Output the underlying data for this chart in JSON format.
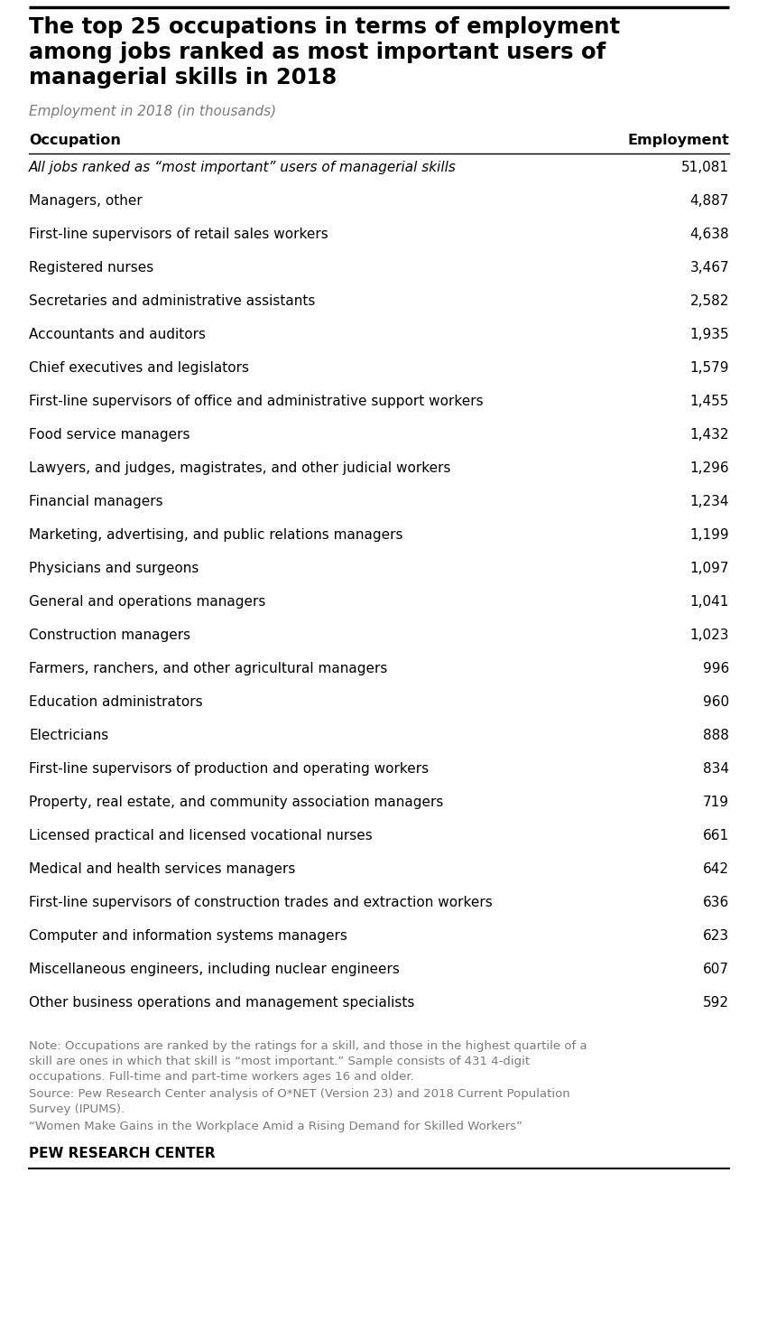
{
  "title_line1": "The top 25 occupations in terms of employment",
  "title_line2": "among jobs ranked as most important users of",
  "title_line3": "managerial skills in 2018",
  "subtitle": "Employment in 2018 (in thousands)",
  "col_header_occupation": "Occupation",
  "col_header_employment": "Employment",
  "rows": [
    {
      "occupation": "All jobs ranked as “most important” users of managerial skills",
      "employment": "51,081",
      "italic": true
    },
    {
      "occupation": "Managers, other",
      "employment": "4,887",
      "italic": false
    },
    {
      "occupation": "First-line supervisors of retail sales workers",
      "employment": "4,638",
      "italic": false
    },
    {
      "occupation": "Registered nurses",
      "employment": "3,467",
      "italic": false
    },
    {
      "occupation": "Secretaries and administrative assistants",
      "employment": "2,582",
      "italic": false
    },
    {
      "occupation": "Accountants and auditors",
      "employment": "1,935",
      "italic": false
    },
    {
      "occupation": "Chief executives and legislators",
      "employment": "1,579",
      "italic": false
    },
    {
      "occupation": "First-line supervisors of office and administrative support workers",
      "employment": "1,455",
      "italic": false
    },
    {
      "occupation": "Food service managers",
      "employment": "1,432",
      "italic": false
    },
    {
      "occupation": "Lawyers, and judges, magistrates, and other judicial workers",
      "employment": "1,296",
      "italic": false
    },
    {
      "occupation": "Financial managers",
      "employment": "1,234",
      "italic": false
    },
    {
      "occupation": "Marketing, advertising, and public relations managers",
      "employment": "1,199",
      "italic": false
    },
    {
      "occupation": "Physicians and surgeons",
      "employment": "1,097",
      "italic": false
    },
    {
      "occupation": "General and operations managers",
      "employment": "1,041",
      "italic": false
    },
    {
      "occupation": "Construction managers",
      "employment": "1,023",
      "italic": false
    },
    {
      "occupation": "Farmers, ranchers, and other agricultural managers",
      "employment": "996",
      "italic": false
    },
    {
      "occupation": "Education administrators",
      "employment": "960",
      "italic": false
    },
    {
      "occupation": "Electricians",
      "employment": "888",
      "italic": false
    },
    {
      "occupation": "First-line supervisors of production and operating workers",
      "employment": "834",
      "italic": false
    },
    {
      "occupation": "Property, real estate, and community association managers",
      "employment": "719",
      "italic": false
    },
    {
      "occupation": "Licensed practical and licensed vocational nurses",
      "employment": "661",
      "italic": false
    },
    {
      "occupation": "Medical and health services managers",
      "employment": "642",
      "italic": false
    },
    {
      "occupation": "First-line supervisors of construction trades and extraction workers",
      "employment": "636",
      "italic": false
    },
    {
      "occupation": "Computer and information systems managers",
      "employment": "623",
      "italic": false
    },
    {
      "occupation": "Miscellaneous engineers, including nuclear engineers",
      "employment": "607",
      "italic": false
    },
    {
      "occupation": "Other business operations and management specialists",
      "employment": "592",
      "italic": false
    }
  ],
  "note_line1": "Note: Occupations are ranked by the ratings for a skill, and those in the highest quartile of a",
  "note_line2": "skill are ones in which that skill is “most important.” Sample consists of 431 4-digit",
  "note_line3": "occupations. Full-time and part-time workers ages 16 and older.",
  "source_line1": "Source: Pew Research Center analysis of O*NET (Version 23) and 2018 Current Population",
  "source_line2": "Survey (IPUMS).",
  "quote": "“Women Make Gains in the Workplace Amid a Rising Demand for Skilled Workers”",
  "branding": "PEW RESEARCH CENTER",
  "bg_color": "#ffffff",
  "title_color": "#000000",
  "subtitle_color": "#7a7a7a",
  "header_color": "#000000",
  "row_color": "#000000",
  "note_color": "#7a7a7a",
  "branding_color": "#000000",
  "top_line_color": "#000000",
  "divider_color": "#000000",
  "bottom_line_color": "#000000"
}
